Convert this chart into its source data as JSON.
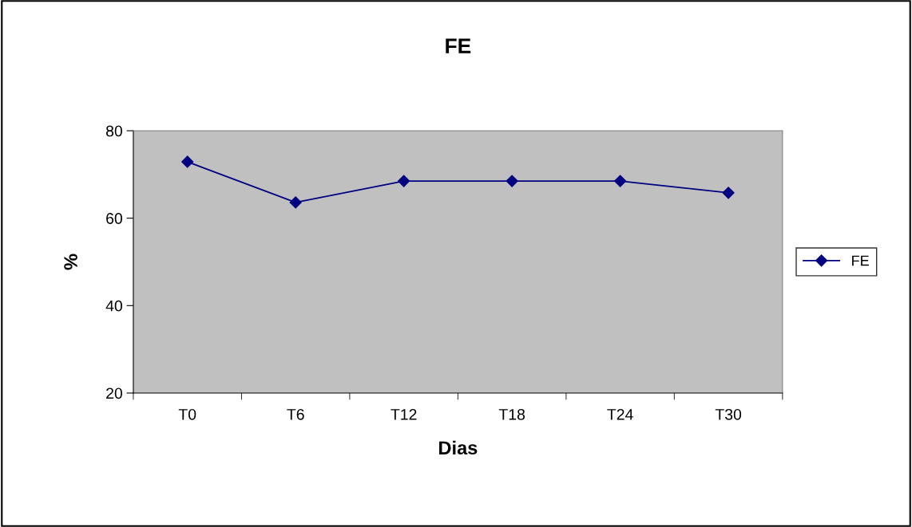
{
  "chart_data": {
    "type": "line",
    "title": "FE",
    "xlabel": "Dias",
    "ylabel": "%",
    "categories": [
      "T0",
      "T6",
      "T12",
      "T18",
      "T24",
      "T30"
    ],
    "series": [
      {
        "name": "FE",
        "color": "#000080",
        "values": [
          72.9,
          63.6,
          68.5,
          68.5,
          68.5,
          65.8
        ]
      }
    ],
    "ylim": [
      20,
      80
    ],
    "yticks": [
      20,
      40,
      60,
      80
    ],
    "grid": false,
    "legend": "right",
    "marker": "diamond",
    "line_style": "solid"
  }
}
